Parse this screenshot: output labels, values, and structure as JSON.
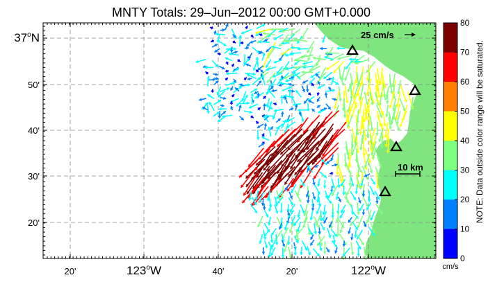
{
  "title": "MNTY Totals: 29–Jun–2012 00:00 GMT+0.000",
  "scale_arrow_label": "25 cm/s",
  "scale_bar_label": "10 km",
  "colorbar": {
    "ticks": [
      "80",
      "70",
      "60",
      "50",
      "40",
      "30",
      "20",
      "10",
      "0"
    ],
    "colors": [
      "#7a0000",
      "#ff0000",
      "#ff7f00",
      "#ffff00",
      "#7fff7f",
      "#00ffff",
      "#007fff",
      "#0000ff"
    ],
    "units": "cm/s",
    "note": "NOTE: Data outside color range will be saturated."
  },
  "axes": {
    "x_ticks": [
      {
        "label": "20'",
        "deg": null
      },
      {
        "label": "123",
        "deg": "o",
        "hemi": "W"
      },
      {
        "label": "40'",
        "deg": null
      },
      {
        "label": "20'",
        "deg": null
      },
      {
        "label": "122",
        "deg": "o",
        "hemi": "W"
      }
    ],
    "y_ticks": [
      {
        "label": "37",
        "deg": "o",
        "hemi": "N"
      },
      {
        "label": "50'"
      },
      {
        "label": "40'"
      },
      {
        "label": "30'"
      },
      {
        "label": "20'"
      }
    ]
  },
  "land_color": "#7fe57f",
  "ocean_color": "#ffffff",
  "stations": [
    "station-1",
    "station-2",
    "station-3",
    "station-4"
  ]
}
